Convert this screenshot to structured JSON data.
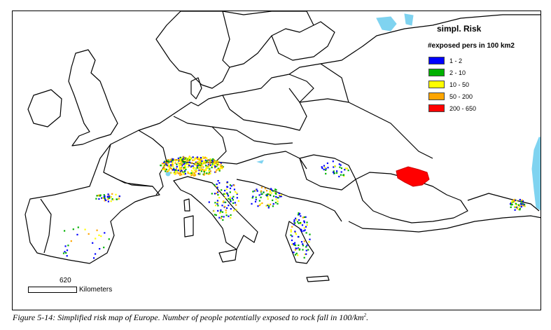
{
  "legend": {
    "title": "simpl. Risk",
    "subtitle": "#exposed  pers in 100 km2",
    "items": [
      {
        "label": "1 - 2",
        "color": "#0000ff"
      },
      {
        "label": "2 - 10",
        "color": "#00b000"
      },
      {
        "label": "10 - 50",
        "color": "#ffff00"
      },
      {
        "label": "50 - 200",
        "color": "#ffa500"
      },
      {
        "label": "200 - 650",
        "color": "#ff0000"
      }
    ]
  },
  "scale": {
    "value": "620",
    "unit": "Kilometers"
  },
  "caption": {
    "text": "Figure 5-14: Simplified risk map of Europe. Number of people potentially exposed to rock fall in 100/km",
    "superscript": "2",
    "suffix": "."
  },
  "colors": {
    "water": "#7fd3f0",
    "border": "#000000",
    "land": "#ffffff"
  }
}
